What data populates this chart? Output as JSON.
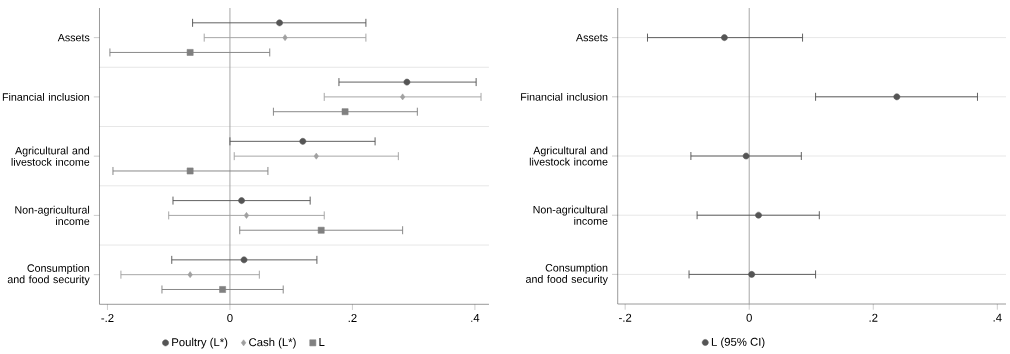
{
  "chart_data": [
    {
      "type": "scatter",
      "orientation": "horizontal",
      "categories": [
        "Assets",
        "Financial inclusion",
        "Agricultural and livestock income",
        "Non-agricultural income",
        "Consumption and food security"
      ],
      "series": [
        {
          "name": "Poultry (L*)",
          "color": "#555555",
          "marker": "circle",
          "values": [
            0.081,
            0.289,
            0.119,
            0.019,
            0.023
          ],
          "errors": [
            [
              -0.061,
              0.222
            ],
            [
              0.178,
              0.402
            ],
            [
              0.0,
              0.237
            ],
            [
              -0.093,
              0.131
            ],
            [
              -0.095,
              0.142
            ]
          ]
        },
        {
          "name": "Cash (L*)",
          "color": "#a0a0a0",
          "marker": "diamond",
          "values": [
            0.09,
            0.282,
            0.141,
            0.027,
            -0.065
          ],
          "errors": [
            [
              -0.042,
              0.222
            ],
            [
              0.154,
              0.41
            ],
            [
              0.007,
              0.275
            ],
            [
              -0.1,
              0.154
            ],
            [
              -0.178,
              0.048
            ]
          ]
        },
        {
          "name": "L",
          "color": "#808080",
          "marker": "square",
          "values": [
            -0.065,
            0.188,
            -0.065,
            0.149,
            -0.012
          ],
          "errors": [
            [
              -0.196,
              0.065
            ],
            [
              0.071,
              0.306
            ],
            [
              -0.191,
              0.062
            ],
            [
              0.016,
              0.282
            ],
            [
              -0.111,
              0.087
            ]
          ]
        }
      ],
      "xlim": [
        -0.213,
        0.423
      ],
      "xticks": [
        {
          "value": -0.2,
          "label": "-.2"
        },
        0,
        {
          "value": 0.2,
          "label": ".2"
        },
        {
          "value": 0.4,
          "label": ".4"
        }
      ],
      "grid": "y",
      "legend": "bottom",
      "ref_lines": [
        {
          "axis": "x",
          "value": 0,
          "color": "#a0a0a0"
        }
      ]
    },
    {
      "type": "scatter",
      "orientation": "horizontal",
      "categories": [
        "Assets",
        "Financial inclusion",
        "Agricultural and livestock income",
        "Non-agricultural income",
        "Consumption and food security"
      ],
      "series": [
        {
          "name": "L (95% CI)",
          "color": "#555555",
          "marker": "circle",
          "values": [
            -0.04,
            0.238,
            -0.005,
            0.015,
            0.004
          ],
          "errors": [
            [
              -0.164,
              0.086
            ],
            [
              0.107,
              0.368
            ],
            [
              -0.094,
              0.084
            ],
            [
              -0.084,
              0.113
            ],
            [
              -0.097,
              0.107
            ]
          ]
        }
      ],
      "xlim": [
        -0.212,
        0.414
      ],
      "xticks": [
        {
          "value": -0.2,
          "label": "-.2"
        },
        0,
        {
          "value": 0.2,
          "label": ".2"
        },
        {
          "value": 0.4,
          "label": ".4"
        }
      ],
      "grid": "y",
      "legend": "bottom",
      "ref_lines": [
        {
          "axis": "x",
          "value": 0,
          "color": "#a0a0a0"
        }
      ]
    }
  ]
}
